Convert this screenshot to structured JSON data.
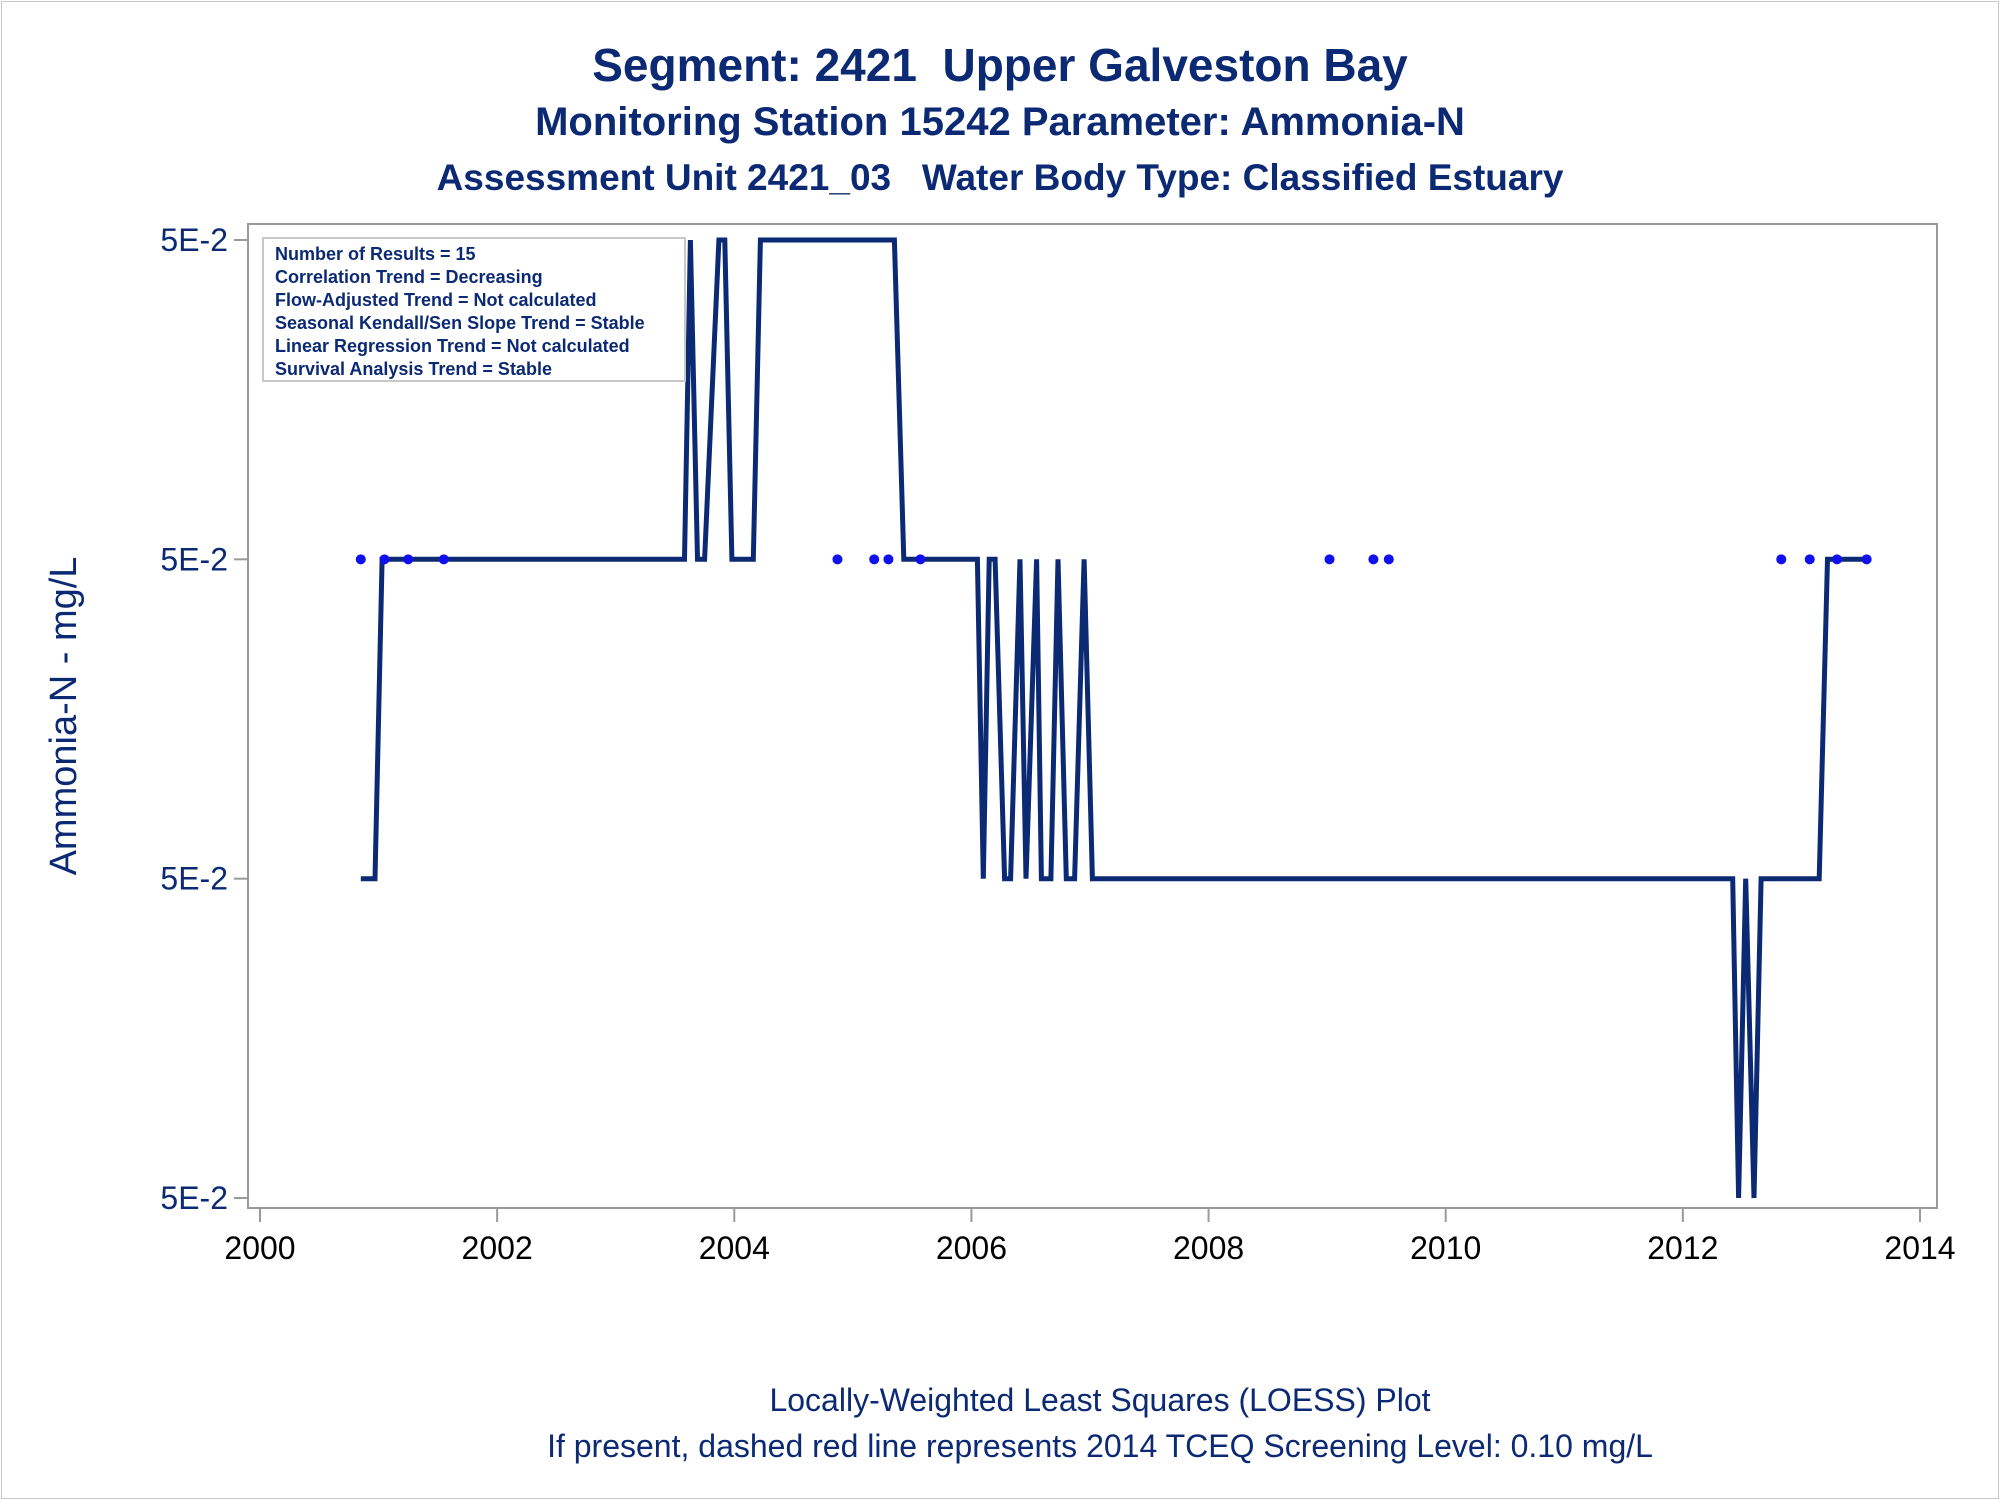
{
  "titles": {
    "line1": "Segment: 2421  Upper Galveston Bay",
    "line2": "Monitoring Station 15242 Parameter: Ammonia-N",
    "line3": "Assessment Unit 2421_03   Water Body Type: Classified Estuary"
  },
  "footnotes": {
    "line1": "Locally-Weighted Least Squares (LOESS) Plot",
    "line2": "If present, dashed red line represents 2014 TCEQ Screening Level: 0.10 mg/L"
  },
  "legend_box": [
    "Number of Results = 15",
    "Correlation Trend = Decreasing",
    "Flow-Adjusted Trend = Not calculated",
    "Seasonal Kendall/Sen Slope Trend = Stable",
    "Linear Regression Trend = Not calculated",
    "Survival Analysis Trend = Stable"
  ],
  "colors": {
    "text": "#0b2a73",
    "line": "#0b2a73",
    "points": "#1010ee",
    "axis": "#9a9a9a"
  },
  "chart_data": {
    "type": "line",
    "ylabel": "Ammonia-N - mg/L",
    "xlabel": "",
    "xlim": [
      2000,
      2014
    ],
    "x_ticks": [
      2000,
      2002,
      2004,
      2006,
      2008,
      2010,
      2012,
      2014
    ],
    "y_tick_labels": [
      "5E-2",
      "5E-2",
      "5E-2",
      "5E-2"
    ],
    "y_tick_levels": [
      4,
      3,
      2,
      1
    ],
    "ylim": [
      1,
      4
    ],
    "grid": false,
    "series": [
      {
        "mark": "line",
        "x": [
          2000.85,
          2000.97,
          2001.03,
          2003.58,
          2003.63,
          2003.69,
          2003.75,
          2003.87,
          2003.92,
          2003.98,
          2004.04,
          2004.16,
          2004.22,
          2005.35,
          2005.43,
          2006.05,
          2006.1,
          2006.15,
          2006.2,
          2006.28,
          2006.33,
          2006.41,
          2006.46,
          2006.55,
          2006.59,
          2006.67,
          2006.73,
          2006.8,
          2006.87,
          2006.95,
          2007.02,
          2012.42,
          2012.47,
          2012.53,
          2012.6,
          2012.66,
          2013.15,
          2013.22,
          2013.55
        ],
        "y": [
          2,
          2,
          3,
          3,
          4,
          3,
          3,
          4,
          4,
          3,
          3,
          3,
          4,
          4,
          3,
          3,
          2,
          3,
          3,
          2,
          2,
          3,
          2,
          3,
          2,
          2,
          3,
          2,
          2,
          3,
          2,
          2,
          1,
          2,
          1,
          2,
          2,
          3,
          3
        ]
      },
      {
        "mark": "scatter",
        "x": [
          2000.85,
          2001.05,
          2001.25,
          2001.55,
          2004.87,
          2005.18,
          2005.3,
          2005.57,
          2009.02,
          2009.39,
          2009.52,
          2012.83,
          2013.07,
          2013.3,
          2013.55
        ],
        "y": [
          3,
          3,
          3,
          3,
          3,
          3,
          3,
          3,
          3,
          3,
          3,
          3,
          3,
          3,
          3
        ]
      }
    ]
  }
}
